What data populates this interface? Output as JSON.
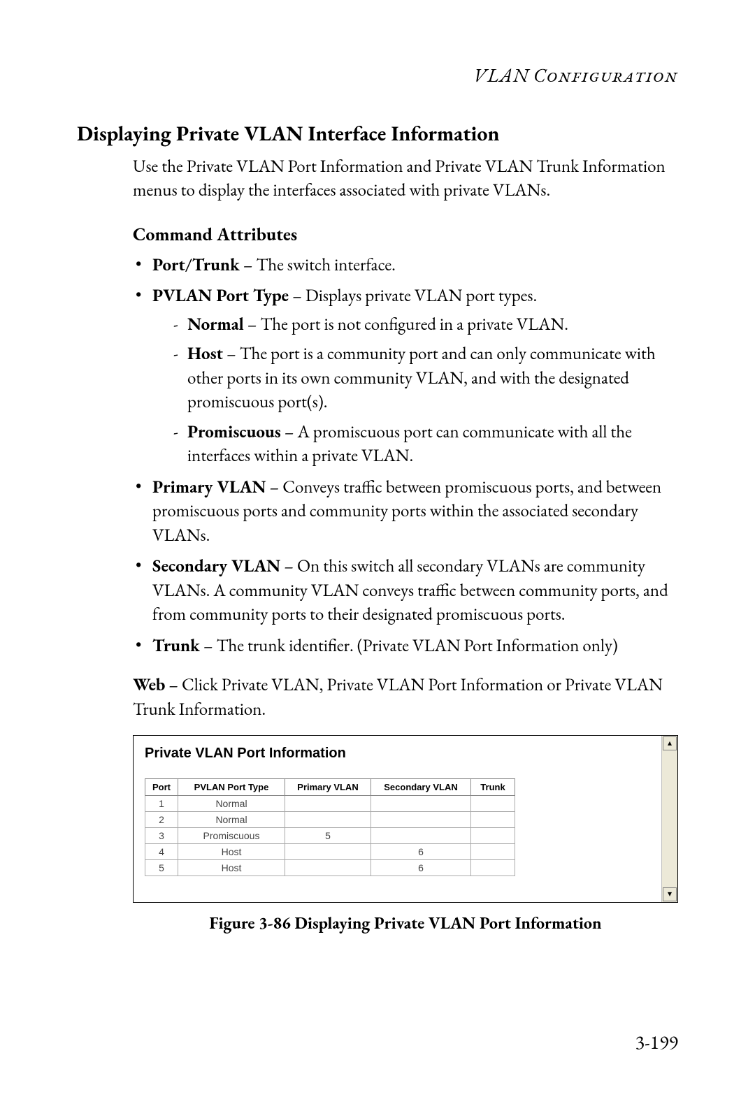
{
  "page": {
    "running_head": "VLAN Configuration",
    "section_title": "Displaying Private VLAN Interface Information",
    "lead_paragraph": "Use the Private VLAN Port Information and Private VLAN Trunk Information menus to display the interfaces associated with private VLANs.",
    "subheading": "Command Attributes",
    "bullets": [
      {
        "term": "Port/Trunk",
        "desc": " – The switch interface."
      },
      {
        "term": "PVLAN Port Type",
        "desc": " – Displays private VLAN port types.",
        "sub": [
          {
            "term": "Normal",
            "desc": " – The port is not configured in a private VLAN."
          },
          {
            "term": "Host",
            "desc": " – The port is a community port and can only communicate with other ports in its own community VLAN, and with the designated promiscuous port(s)."
          },
          {
            "term": "Promiscuous",
            "desc": " – A promiscuous port can communicate with all the interfaces within a private VLAN."
          }
        ]
      },
      {
        "term": "Primary VLAN",
        "desc": " – Conveys traffic between promiscuous ports, and between promiscuous ports and community ports within the associated secondary VLANs."
      },
      {
        "term": "Secondary VLAN",
        "desc": " – On this switch all secondary VLANs are community VLANs. A community VLAN conveys traffic between community ports, and from community ports to their designated promiscuous ports."
      },
      {
        "term": "Trunk",
        "desc": " – The trunk identifier. (Private VLAN Port Information only)"
      }
    ],
    "web_label": "Web",
    "web_text": " – Click Private VLAN, Private VLAN Port Information or Private VLAN Trunk Information.",
    "figure_caption": "Figure 3-86  Displaying Private VLAN Port Information",
    "page_number": "3-199"
  },
  "screenshot": {
    "title": "Private VLAN Port Information",
    "columns": [
      "Port",
      "PVLAN Port Type",
      "Primary VLAN",
      "Secondary VLAN",
      "Trunk"
    ],
    "rows": [
      {
        "port": "1",
        "type": "Normal",
        "primary": "",
        "secondary": "",
        "trunk": ""
      },
      {
        "port": "2",
        "type": "Normal",
        "primary": "",
        "secondary": "",
        "trunk": ""
      },
      {
        "port": "3",
        "type": "Promiscuous",
        "primary": "5",
        "secondary": "",
        "trunk": ""
      },
      {
        "port": "4",
        "type": "Host",
        "primary": "",
        "secondary": "6",
        "trunk": ""
      },
      {
        "port": "5",
        "type": "Host",
        "primary": "",
        "secondary": "6",
        "trunk": ""
      }
    ],
    "scroll_up_glyph": "▴",
    "scroll_down_glyph": "▾",
    "colors": {
      "page_bg": "#ffffff",
      "panel_border": "#000000",
      "table_border": "#aaaaaa",
      "header_border": "#888888",
      "scrollbar_bg": "#ece9d8",
      "scroll_btn_border": "#808080",
      "cell_text": "#444444"
    },
    "fonts": {
      "body_serif": "Garamond",
      "ui_sans": "Arial",
      "body_size_pt": 19,
      "shot_title_size_pt": 15,
      "table_size_pt": 10
    }
  }
}
